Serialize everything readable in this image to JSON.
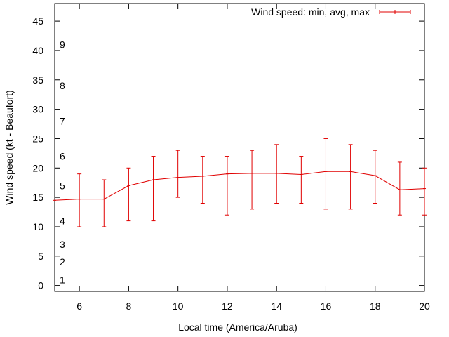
{
  "chart_data": {
    "type": "line",
    "title": "",
    "xlabel": "Local time (America/Aruba)",
    "ylabel": "Wind speed (kt - Beaufort)",
    "xlim": [
      5,
      20
    ],
    "ylim": [
      -1,
      48
    ],
    "x_ticks": [
      6,
      8,
      10,
      12,
      14,
      16,
      18,
      20
    ],
    "y_ticks": [
      0,
      5,
      10,
      15,
      20,
      25,
      30,
      35,
      40,
      45
    ],
    "beaufort_labels": [
      {
        "label": "1",
        "value": 1.0
      },
      {
        "label": "2",
        "value": 4.0
      },
      {
        "label": "3",
        "value": 7.0
      },
      {
        "label": "4",
        "value": 11.0
      },
      {
        "label": "5",
        "value": 17.0
      },
      {
        "label": "6",
        "value": 22.0
      },
      {
        "label": "7",
        "value": 28.0
      },
      {
        "label": "8",
        "value": 34.0
      },
      {
        "label": "9",
        "value": 41.0
      }
    ],
    "legend": {
      "label": "Wind speed: min, avg, max",
      "position": "top-right"
    },
    "color": "#e00000",
    "series": [
      {
        "name": "Wind speed: min, avg, max",
        "x": [
          5,
          6,
          7,
          8,
          9,
          10,
          11,
          12,
          13,
          14,
          15,
          16,
          17,
          18,
          19,
          20
        ],
        "avg": [
          14.5,
          14.7,
          14.7,
          17,
          18,
          18.4,
          18.6,
          19,
          19.1,
          19.1,
          18.9,
          19.4,
          19.4,
          18.7,
          16.3,
          16.5
        ],
        "min": [
          null,
          10,
          10,
          11,
          11,
          15,
          14,
          12,
          13,
          14,
          14,
          13,
          13,
          14,
          12,
          12
        ],
        "max": [
          null,
          19,
          18,
          20,
          22,
          23,
          22,
          22,
          23,
          24,
          22,
          25,
          24,
          23,
          21,
          20
        ]
      }
    ]
  }
}
